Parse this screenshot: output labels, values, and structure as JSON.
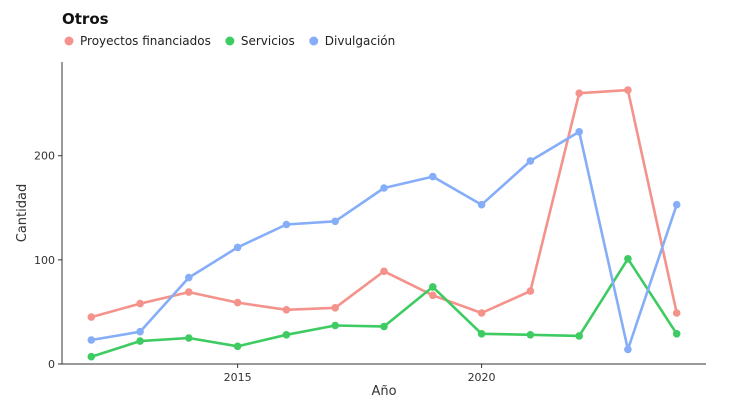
{
  "chart_data": {
    "type": "line",
    "title": "Otros",
    "xlabel": "Año",
    "ylabel": "Cantidad",
    "x": [
      2012,
      2013,
      2014,
      2015,
      2016,
      2017,
      2018,
      2019,
      2020,
      2021,
      2022,
      2023,
      2024
    ],
    "xlim": [
      2011.4,
      2024.6
    ],
    "ylim": [
      0,
      290
    ],
    "x_ticks": [
      2015,
      2020
    ],
    "x_tick_labels": [
      "2015",
      "2020"
    ],
    "y_ticks": [
      0,
      100,
      200
    ],
    "y_tick_labels": [
      "0",
      "100",
      "200"
    ],
    "grid": false,
    "legend_position": "top-left",
    "series": [
      {
        "name": "Proyectos financiados",
        "color": "#f4928b",
        "values": [
          45,
          58,
          69,
          59,
          52,
          54,
          89,
          66,
          49,
          70,
          260,
          263,
          49
        ]
      },
      {
        "name": "Servicios",
        "color": "#3ecb61",
        "values": [
          7,
          22,
          25,
          17,
          28,
          37,
          36,
          74,
          29,
          28,
          27,
          101,
          29
        ]
      },
      {
        "name": "Divulgación",
        "color": "#86adf7",
        "values": [
          23,
          31,
          83,
          112,
          134,
          137,
          169,
          180,
          153,
          195,
          223,
          14,
          153
        ]
      }
    ]
  }
}
